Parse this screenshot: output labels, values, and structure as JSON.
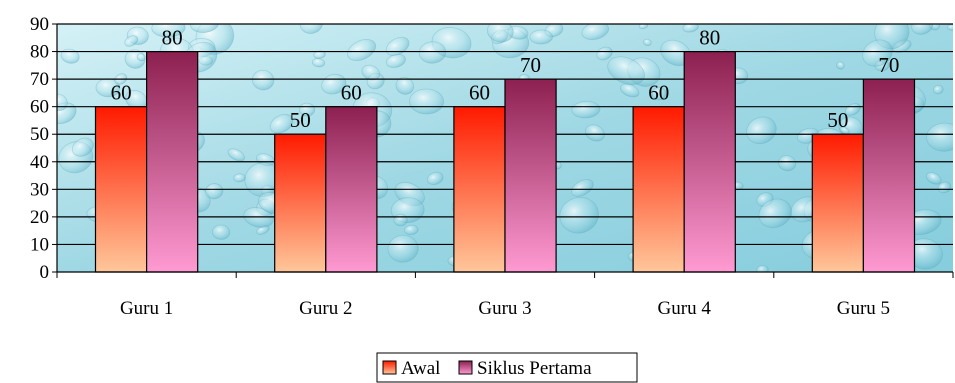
{
  "chart_data": {
    "type": "bar",
    "categories": [
      "Guru 1",
      "Guru 2",
      "Guru 3",
      "Guru 4",
      "Guru 5"
    ],
    "series": [
      {
        "name": "Awal",
        "values": [
          60,
          50,
          60,
          60,
          50
        ],
        "color_top": "#ff1a00",
        "color_bottom": "#ffc79a"
      },
      {
        "name": "Siklus Pertama",
        "values": [
          80,
          60,
          70,
          80,
          70
        ],
        "color_top": "#8c2050",
        "color_bottom": "#ff9ad2"
      }
    ],
    "title": "",
    "xlabel": "",
    "ylabel": "",
    "ylim": [
      0,
      90
    ],
    "yticks": [
      0,
      10,
      20,
      30,
      40,
      50,
      60,
      70,
      80,
      90
    ],
    "grid": true,
    "legend_position": "bottom",
    "plot_background": "water-droplet texture",
    "data_labels": true
  }
}
